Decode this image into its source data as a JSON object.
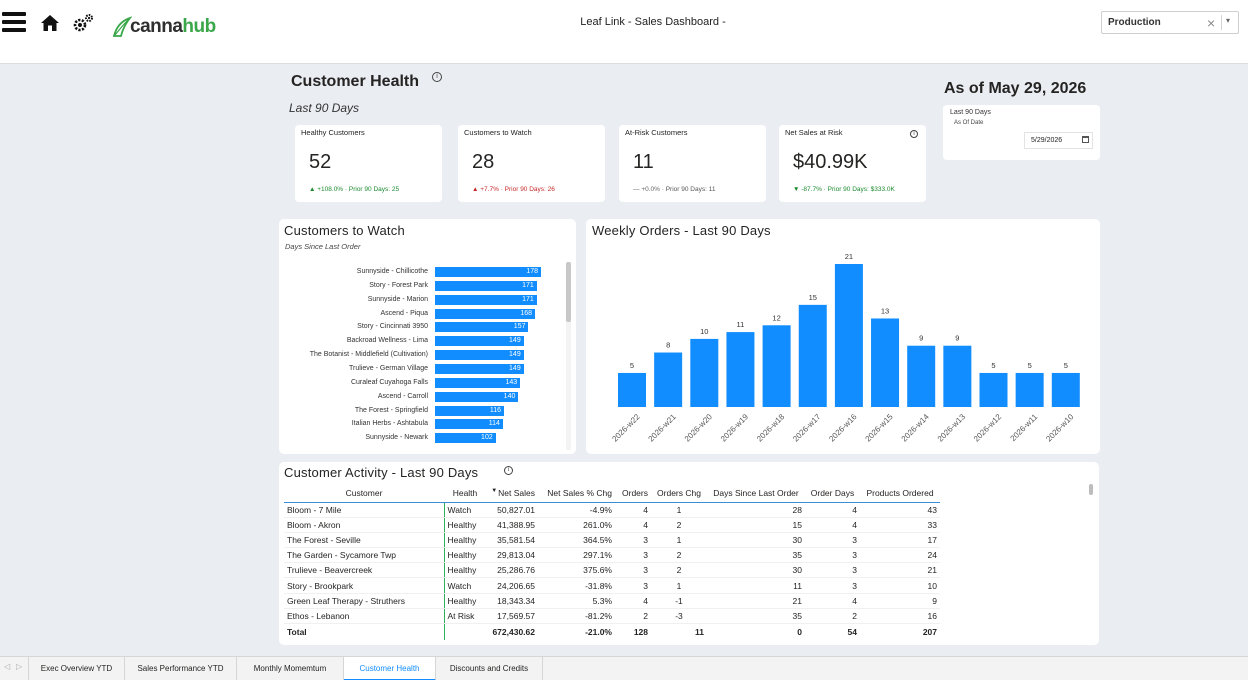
{
  "app": {
    "title": "Leaf Link - Sales Dashboard -",
    "logo_part1": "canna",
    "logo_part2": "hub",
    "environment": "Production",
    "clear_symbol": "×",
    "dropdown_symbol": "▾"
  },
  "icons": {
    "menu": "hamburger-menu-icon",
    "home": "home-icon",
    "settings": "gears-icon",
    "info": "info-icon",
    "calendar": "calendar-icon"
  },
  "header": {
    "title": "Customer Health",
    "period": "Last 90 Days",
    "as_of": "As of May 29, 2026",
    "date_filter": {
      "label": "Last 90 Days",
      "sublabel": "As Of Date",
      "value": "5/29/2026"
    }
  },
  "kpis": [
    {
      "label": "Healthy Customers",
      "value": "52",
      "arrow": "▲",
      "change": "+108.0%",
      "prior": "· Prior 90 Days: 25"
    },
    {
      "label": "Customers to Watch",
      "value": "28",
      "arrow": "▲",
      "change": "+7.7%",
      "prior": "· Prior 90 Days: 26"
    },
    {
      "label": "At-Risk Customers",
      "value": "11",
      "arrow": "—",
      "change": "+0.0%",
      "prior": "· Prior 90 Days: 11"
    },
    {
      "label": "Net Sales at Risk",
      "value": "$40.99K",
      "arrow": "▼",
      "change": "-87.7%",
      "prior": "· Prior 90 Days: $333.0K"
    }
  ],
  "watch_panel": {
    "title": "Customers to Watch",
    "subtitle": "Days Since Last Order"
  },
  "weekly_panel": {
    "title": "Weekly Orders - Last 90 Days"
  },
  "activity_panel": {
    "title": "Customer Activity - Last 90 Days",
    "sort_symbol": "▼",
    "columns": [
      "Customer",
      "Health",
      "Net Sales",
      "Net Sales % Chg",
      "Orders",
      "Orders Chg",
      "Days Since Last Order",
      "Order Days",
      "Products Ordered"
    ],
    "rows": [
      [
        "Bloom - 7 Mile",
        "Watch",
        "50,827.01",
        "-4.9%",
        "4",
        "1",
        "28",
        "4",
        "43"
      ],
      [
        "Bloom - Akron",
        "Healthy",
        "41,388.95",
        "261.0%",
        "4",
        "2",
        "15",
        "4",
        "33"
      ],
      [
        "The Forest - Seville",
        "Healthy",
        "35,581.54",
        "364.5%",
        "3",
        "1",
        "30",
        "3",
        "17"
      ],
      [
        "The Garden - Sycamore Twp",
        "Healthy",
        "29,813.04",
        "297.1%",
        "3",
        "2",
        "35",
        "3",
        "24"
      ],
      [
        "Trulieve - Beavercreek",
        "Healthy",
        "25,286.76",
        "375.6%",
        "3",
        "2",
        "30",
        "3",
        "21"
      ],
      [
        "Story - Brookpark",
        "Watch",
        "24,206.65",
        "-31.8%",
        "3",
        "1",
        "11",
        "3",
        "10"
      ],
      [
        "Green Leaf Therapy - Struthers",
        "Healthy",
        "18,343.34",
        "5.3%",
        "4",
        "-1",
        "21",
        "4",
        "9"
      ],
      [
        "Ethos - Lebanon",
        "At Risk",
        "17,569.57",
        "-81.2%",
        "2",
        "-3",
        "35",
        "2",
        "16"
      ]
    ],
    "total": [
      "Total",
      "",
      "672,430.62",
      "-21.0%",
      "128",
      "11",
      "0",
      "54",
      "207"
    ]
  },
  "tabs": {
    "prev": "◁",
    "next": "▷",
    "items": [
      "Exec Overview YTD",
      "Sales Performance YTD",
      "Monthly Momemtum",
      "Customer Health",
      "Discounts and Credits"
    ],
    "active": "Customer Health"
  },
  "colors": {
    "bar": "#118dff",
    "healthy": "#2e8b3f",
    "watch": "#e89a00",
    "at_risk": "#d32f2f",
    "brand_green": "#3aa74a"
  },
  "chart_data": [
    {
      "type": "bar",
      "orientation": "horizontal",
      "title": "Customers to Watch",
      "subtitle": "Days Since Last Order",
      "categories": [
        "Sunnyside - Chillicothe",
        "Story - Forest Park",
        "Sunnyside - Marion",
        "Ascend - Piqua",
        "Story - Cincinnati 3950",
        "Backroad Wellness - Lima",
        "The Botanist - Middlefield (Cultivation)",
        "Trulieve - German Village",
        "Curaleaf Cuyahoga Falls",
        "Ascend - Carroll",
        "The Forest - Springfield",
        "Italian Herbs - Ashtabula",
        "Sunnyside - Newark"
      ],
      "values": [
        178,
        171,
        171,
        168,
        157,
        149,
        149,
        149,
        143,
        140,
        116,
        114,
        102
      ],
      "data_labels": true
    },
    {
      "type": "bar",
      "title": "Weekly Orders - Last 90 Days",
      "categories": [
        "2026-w22",
        "2026-w21",
        "2026-w20",
        "2026-w19",
        "2026-w18",
        "2026-w17",
        "2026-w16",
        "2026-w15",
        "2026-w14",
        "2026-w13",
        "2026-w12",
        "2026-w11",
        "2026-w10"
      ],
      "values": [
        5,
        8,
        10,
        11,
        12,
        15,
        21,
        13,
        9,
        9,
        5,
        5,
        5
      ],
      "data_labels": true,
      "grid": false
    }
  ]
}
